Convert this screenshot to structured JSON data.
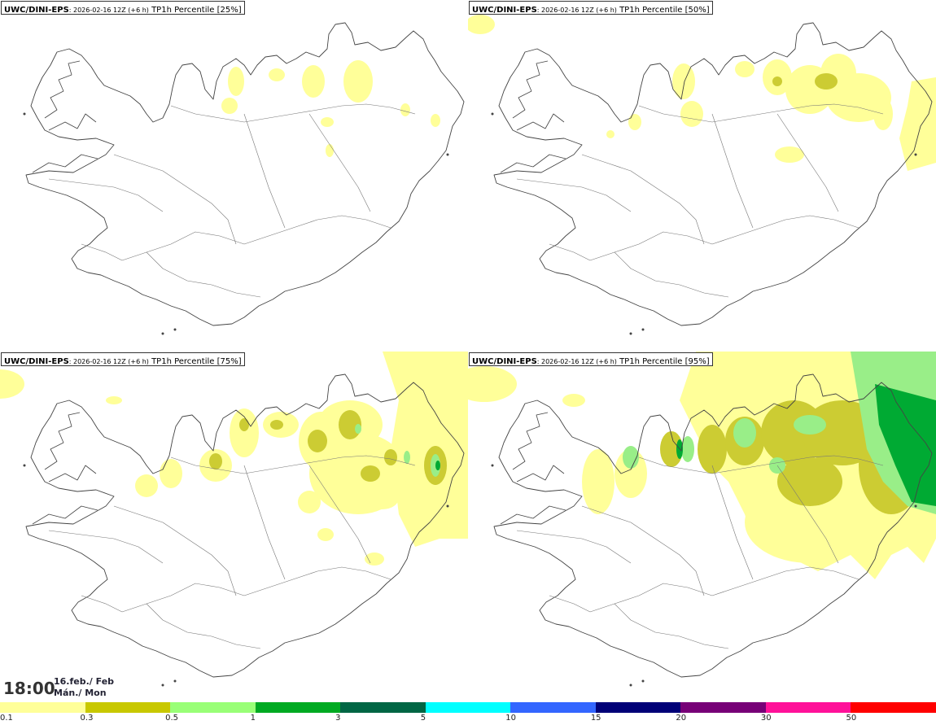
{
  "panels": [
    {
      "model": "UWC/DINI-EPS",
      "run": ": 2026-02-16 12Z (+6 h)",
      "field": " TP1h Percentile [25%]"
    },
    {
      "model": "UWC/DINI-EPS",
      "run": ": 2026-02-16 12Z (+6 h)",
      "field": " TP1h Percentile [50%]"
    },
    {
      "model": "UWC/DINI-EPS",
      "run": ": 2026-02-16 12Z (+6 h)",
      "field": " TP1h Percentile [75%]"
    },
    {
      "model": "UWC/DINI-EPS",
      "run": ": 2026-02-16 12Z (+6 h)",
      "field": " TP1h Percentile [95%]"
    }
  ],
  "valid_time": {
    "time": "18:00",
    "date": "16.feb./ Feb",
    "weekday": "Mán./ Mon"
  },
  "legend": {
    "colors": [
      "#ffff99",
      "#c8c800",
      "#99ff77",
      "#00aa22",
      "#006644",
      "#00ffff",
      "#3366ff",
      "#000077",
      "#770077",
      "#ff1199",
      "#ff0000"
    ],
    "ticks": [
      "0.1",
      "0.3",
      "0.5",
      "1",
      "3",
      "5",
      "10",
      "15",
      "20",
      "30",
      "50"
    ]
  },
  "palette": {
    "light_yellow": "#ffff99",
    "olive": "#cccc33",
    "light_green": "#99ee88",
    "green": "#00aa33",
    "coast": "#444444"
  }
}
